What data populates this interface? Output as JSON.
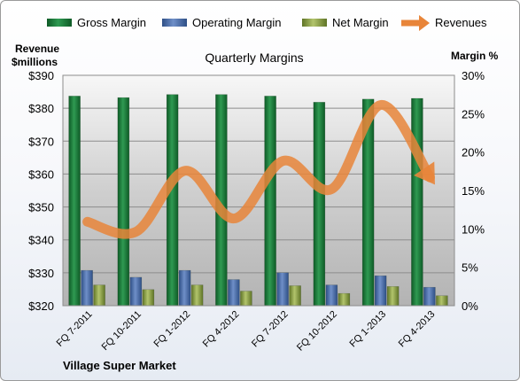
{
  "chart_data": {
    "type": "bar",
    "title": "Quarterly Margins",
    "footer_label": "Village Super Market",
    "ylabel_left": [
      "Revenue",
      "$millions"
    ],
    "ylabel_right": "Margin %",
    "categories": [
      "FQ 7-2011",
      "FQ 10-2011",
      "FQ 1-2012",
      "FQ 4-2012",
      "FQ 7-2012",
      "FQ 10-2012",
      "FQ 1-2013",
      "FQ 4-2013"
    ],
    "left_axis": {
      "ylim": [
        320,
        390
      ],
      "ticks": [
        320,
        330,
        340,
        350,
        360,
        370,
        380,
        390
      ],
      "tick_labels": [
        "$320",
        "$330",
        "$340",
        "$350",
        "$360",
        "$370",
        "$380",
        "$390"
      ]
    },
    "right_axis": {
      "ylim": [
        0,
        30
      ],
      "ticks": [
        0,
        5,
        10,
        15,
        20,
        25,
        30
      ],
      "tick_labels": [
        "0%",
        "5%",
        "10%",
        "15%",
        "20%",
        "25%",
        "30%"
      ]
    },
    "series": [
      {
        "name": "Gross Margin",
        "type": "bar",
        "axis": "right",
        "color": "#1e7a3c",
        "values": [
          27.3,
          27.1,
          27.5,
          27.5,
          27.3,
          26.5,
          26.9,
          27.0
        ]
      },
      {
        "name": "Operating Margin",
        "type": "bar",
        "axis": "right",
        "color": "#4a6da8",
        "values": [
          4.6,
          3.7,
          4.6,
          3.4,
          4.3,
          2.7,
          3.9,
          2.4
        ]
      },
      {
        "name": "Net Margin",
        "type": "bar",
        "axis": "right",
        "color": "#8ca04a",
        "values": [
          2.7,
          2.1,
          2.7,
          1.9,
          2.6,
          1.6,
          2.5,
          1.3
        ]
      },
      {
        "name": "Revenues",
        "type": "line",
        "axis": "left",
        "color": "#e8853a",
        "values": [
          345.5,
          342.5,
          361,
          346.5,
          364,
          355.5,
          381,
          359
        ]
      }
    ],
    "legend_position": "top",
    "grid": true
  }
}
